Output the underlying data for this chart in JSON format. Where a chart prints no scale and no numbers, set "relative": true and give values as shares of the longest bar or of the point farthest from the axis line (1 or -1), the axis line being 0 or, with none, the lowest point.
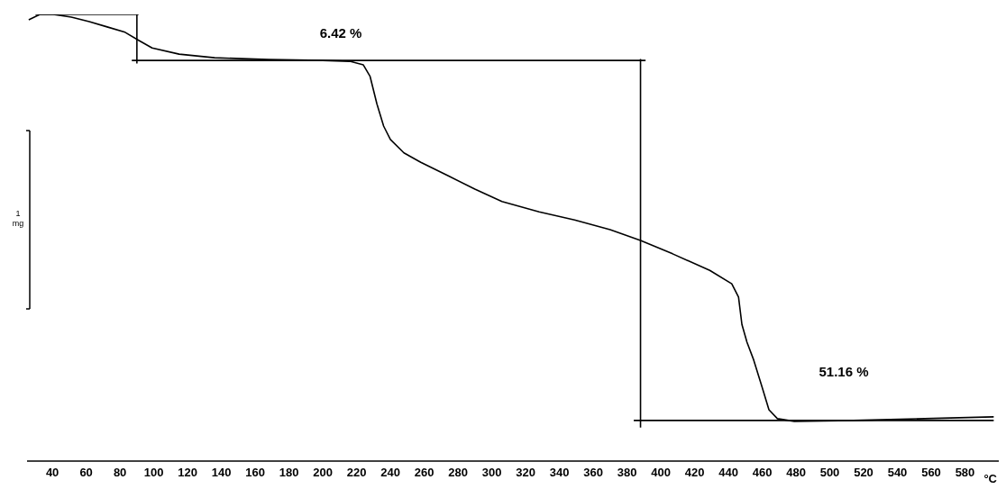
{
  "chart_data": {
    "type": "line",
    "relative": true,
    "xlabel": "°C",
    "xlim": [
      25,
      600
    ],
    "xticks": [
      40,
      60,
      80,
      100,
      120,
      140,
      160,
      180,
      200,
      220,
      240,
      260,
      280,
      300,
      320,
      340,
      360,
      380,
      400,
      420,
      440,
      460,
      480,
      500,
      520,
      540,
      560,
      580
    ],
    "marker": "none",
    "line_style": "solid",
    "annotations": [
      "6.42 %",
      "51.16 %",
      "1 mg"
    ],
    "series": [
      {
        "color": "#000000",
        "x": [
          26,
          32.6,
          40.5,
          51.2,
          61.8,
          72.4,
          83,
          91,
          99,
          115,
          136,
          168,
          200,
          216,
          224,
          228,
          232,
          236,
          240,
          248,
          258,
          274,
          290,
          306,
          328,
          349,
          370,
          388,
          407,
          429,
          442,
          446,
          448,
          451,
          455,
          460,
          464,
          469,
          479,
          514,
          556,
          597
        ],
        "values": [
          0.988,
          1.0,
          1.0,
          0.994,
          0.984,
          0.972,
          0.96,
          0.942,
          0.925,
          0.911,
          0.903,
          0.899,
          0.897,
          0.895,
          0.887,
          0.861,
          0.8,
          0.75,
          0.72,
          0.69,
          0.669,
          0.639,
          0.609,
          0.581,
          0.558,
          0.54,
          0.518,
          0.494,
          0.464,
          0.427,
          0.397,
          0.367,
          0.306,
          0.266,
          0.226,
          0.165,
          0.115,
          0.095,
          0.089,
          0.091,
          0.095,
          0.099
        ]
      },
      {
        "color": "#000000",
        "x": [
          30,
          91
        ],
        "values": [
          1.0,
          1.0
        ]
      },
      {
        "color": "#000000",
        "x": [
          90,
          90
        ],
        "values": [
          1.0,
          0.89
        ]
      },
      {
        "color": "#000000",
        "x": [
          87,
          391
        ],
        "values": [
          0.897,
          0.897
        ]
      },
      {
        "color": "#000000",
        "x": [
          388,
          388
        ],
        "values": [
          0.9,
          0.075
        ]
      },
      {
        "color": "#000000",
        "x": [
          384,
          597
        ],
        "values": [
          0.091,
          0.091
        ]
      }
    ]
  }
}
